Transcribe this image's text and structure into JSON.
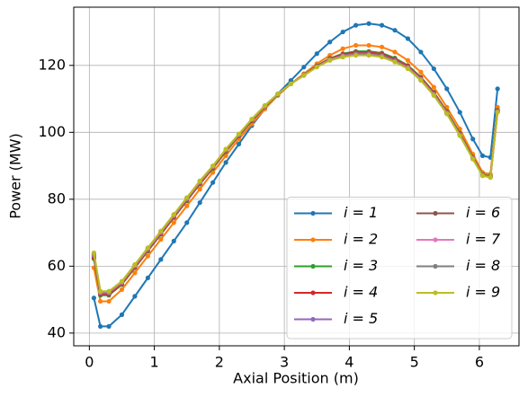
{
  "chart_data": {
    "type": "line",
    "xlabel": "Axial Position (m)",
    "ylabel": "Power (MW)",
    "x": [
      0.07,
      0.17,
      0.3,
      0.5,
      0.7,
      0.9,
      1.1,
      1.3,
      1.5,
      1.7,
      1.9,
      2.1,
      2.3,
      2.5,
      2.7,
      2.9,
      3.1,
      3.3,
      3.5,
      3.7,
      3.9,
      4.1,
      4.3,
      4.5,
      4.7,
      4.9,
      5.1,
      5.3,
      5.5,
      5.7,
      5.9,
      6.05,
      6.17,
      6.28
    ],
    "series": [
      {
        "name": "i = 1",
        "color": "#1f77b4",
        "values": [
          50.5,
          42,
          42,
          45.5,
          51,
          56.5,
          62,
          67.5,
          73,
          79,
          85,
          91,
          96.5,
          102,
          107,
          111.5,
          115.5,
          119.5,
          123.5,
          127,
          130,
          132,
          132.5,
          132,
          130.5,
          128,
          124,
          119,
          113,
          106,
          98,
          93,
          92.5,
          113
        ]
      },
      {
        "name": "i = 2",
        "color": "#ff7f0e",
        "values": [
          59.5,
          49.5,
          49.5,
          53,
          58,
          63,
          68,
          73,
          78,
          83,
          88,
          93,
          98,
          102.5,
          107,
          111,
          114.5,
          117.5,
          120.5,
          123,
          125,
          126,
          126,
          125.5,
          124,
          121.5,
          118,
          113.5,
          107.5,
          101,
          93.5,
          88,
          87.5,
          107.5
        ]
      },
      {
        "name": "i = 3",
        "color": "#2ca02c",
        "values": [
          62.2,
          51.3,
          51.3,
          54.5,
          59.5,
          64.5,
          69.5,
          74.5,
          79.5,
          84.5,
          89.2,
          94.2,
          98.9,
          103.4,
          107.6,
          111.3,
          114.5,
          117.2,
          119.9,
          122.1,
          123.5,
          124.2,
          124.2,
          123.7,
          122.2,
          120.0,
          116.5,
          112.0,
          106.3,
          99.8,
          92.6,
          87.4,
          86.9,
          106.6
        ]
      },
      {
        "name": "i = 4",
        "color": "#d62728",
        "values": [
          62.6,
          51.6,
          51.6,
          54.7,
          59.7,
          64.7,
          69.7,
          74.7,
          79.7,
          84.7,
          89.4,
          94.4,
          99.0,
          103.5,
          107.7,
          111.4,
          114.5,
          117.2,
          119.8,
          122.0,
          123.3,
          123.9,
          123.9,
          123.4,
          121.9,
          119.8,
          116.3,
          111.8,
          106.1,
          99.6,
          92.5,
          87.3,
          86.8,
          106.5
        ]
      },
      {
        "name": "i = 5",
        "color": "#9467bd",
        "values": [
          63.1,
          51.9,
          51.9,
          55.0,
          60.0,
          65.0,
          70.0,
          75.0,
          80.0,
          85.0,
          89.6,
          94.6,
          99.2,
          103.7,
          107.8,
          111.4,
          114.5,
          117.1,
          119.7,
          121.8,
          123.0,
          123.6,
          123.6,
          123.1,
          121.6,
          119.5,
          116.0,
          111.5,
          105.9,
          99.4,
          92.3,
          87.2,
          86.7,
          106.3
        ]
      },
      {
        "name": "i = 6",
        "color": "#8c564b",
        "values": [
          63.3,
          52.0,
          52.0,
          55.1,
          60.1,
          65.1,
          70.1,
          75.1,
          80.1,
          85.1,
          89.7,
          94.7,
          99.3,
          103.8,
          107.9,
          111.4,
          114.5,
          117.1,
          119.7,
          121.7,
          122.9,
          123.5,
          123.5,
          123.0,
          121.5,
          119.4,
          115.9,
          111.4,
          105.8,
          99.3,
          92.2,
          87.2,
          86.7,
          106.2
        ]
      },
      {
        "name": "i = 7",
        "color": "#e377c2",
        "values": [
          63.5,
          52.2,
          52.2,
          55.2,
          60.2,
          65.2,
          70.2,
          75.2,
          80.2,
          85.2,
          89.8,
          94.8,
          99.4,
          103.9,
          107.9,
          111.5,
          114.5,
          117.1,
          119.6,
          121.7,
          122.8,
          123.3,
          123.3,
          122.8,
          121.3,
          119.3,
          115.8,
          111.3,
          105.7,
          99.2,
          92.2,
          87.1,
          86.6,
          106.2
        ]
      },
      {
        "name": "i = 8",
        "color": "#7f7f7f",
        "values": [
          63.8,
          52.4,
          52.4,
          55.4,
          60.4,
          65.4,
          70.4,
          75.4,
          80.4,
          85.4,
          89.9,
          94.9,
          99.4,
          103.9,
          108.0,
          111.5,
          114.5,
          117.0,
          119.6,
          121.6,
          122.6,
          123.2,
          123.2,
          122.7,
          121.2,
          119.1,
          115.6,
          111.1,
          105.6,
          99.1,
          92.1,
          87.1,
          86.6,
          106.1
        ]
      },
      {
        "name": "i = 9",
        "color": "#bcbd22",
        "values": [
          64,
          52.5,
          52.5,
          55.5,
          60.5,
          65.5,
          70.5,
          75.5,
          80.5,
          85.5,
          90,
          95,
          99.5,
          104,
          108,
          111.5,
          114.5,
          117,
          119.5,
          121.5,
          122.5,
          123,
          123,
          122.5,
          121,
          119,
          115.5,
          111,
          105.5,
          99,
          92,
          87,
          86.5,
          106
        ]
      }
    ],
    "xlim": [
      -0.24,
      6.61
    ],
    "xticks": [
      0,
      1,
      2,
      3,
      4,
      5,
      6
    ],
    "ylim": [
      36.2,
      137.4
    ],
    "yticks": [
      40,
      60,
      80,
      100,
      120
    ],
    "grid": true,
    "legend": "lower right",
    "legend_columns": 2
  }
}
